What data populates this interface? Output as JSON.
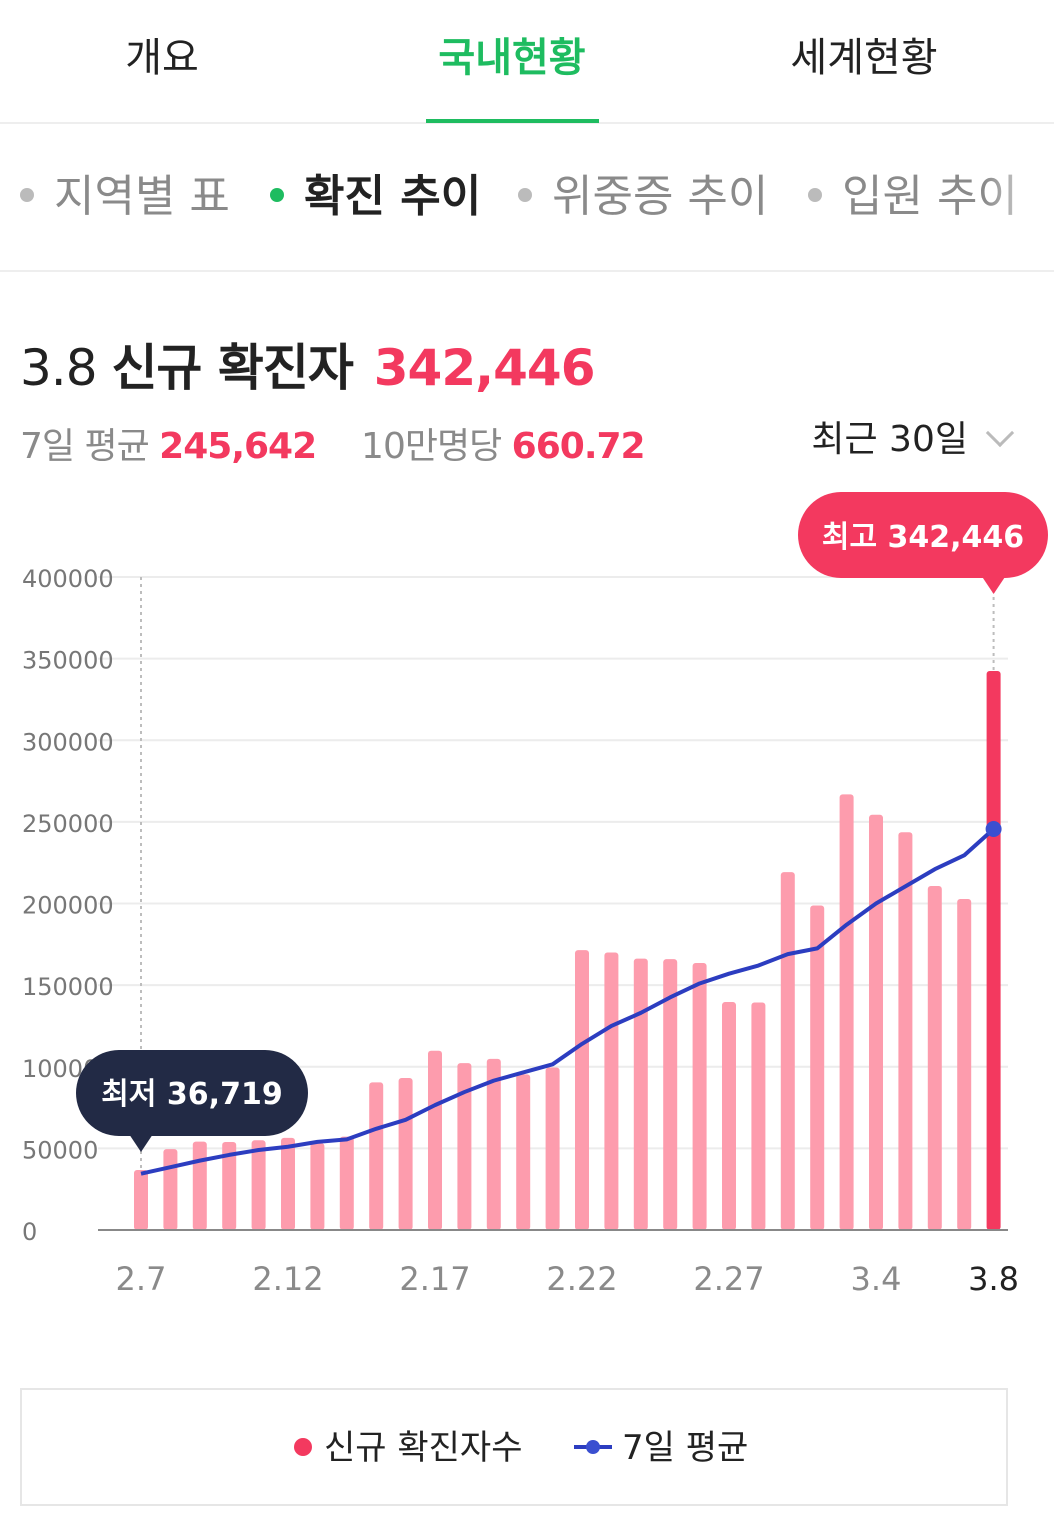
{
  "top_tabs": [
    {
      "label": "개요",
      "active": false
    },
    {
      "label": "국내현황",
      "active": true
    },
    {
      "label": "세계현황",
      "active": false
    }
  ],
  "sub_tabs": [
    {
      "label": "지역별 표",
      "active": false
    },
    {
      "label": "확진 추이",
      "active": true
    },
    {
      "label": "위중증 추이",
      "active": false
    },
    {
      "label": "입원 추이",
      "active": false
    }
  ],
  "headline": {
    "date": "3.8",
    "label": "신규 확진자",
    "value": "342,446"
  },
  "stats": {
    "avg_label": "7일 평균",
    "avg_value": "245,642",
    "per100k_label": "10만명당",
    "per100k_value": "660.72"
  },
  "period_selector": {
    "label": "최근 30일",
    "icon": "chevron-down-icon"
  },
  "colors": {
    "accent_green": "#1ebc60",
    "bar": "#fd9cad",
    "bar_highlight": "#f3395f",
    "line": "#2c3dc0",
    "tooltip_dark": "#222a45"
  },
  "chart_data": {
    "type": "bar",
    "x": [
      "2.7",
      "2.8",
      "2.9",
      "2.10",
      "2.11",
      "2.12",
      "2.13",
      "2.14",
      "2.15",
      "2.16",
      "2.17",
      "2.18",
      "2.19",
      "2.20",
      "2.21",
      "2.22",
      "2.23",
      "2.24",
      "2.25",
      "2.26",
      "2.27",
      "2.28",
      "3.1",
      "3.2",
      "3.3",
      "3.4",
      "3.5",
      "3.6",
      "3.7",
      "3.8"
    ],
    "x_tick_labels": [
      "2.7",
      "2.12",
      "2.17",
      "2.22",
      "2.27",
      "3.4",
      "3.8"
    ],
    "y_tick_labels": [
      "400000",
      "350000",
      "300000",
      "250000",
      "200000",
      "150000",
      "100000",
      "50000",
      "0"
    ],
    "ylim": [
      0,
      400000
    ],
    "series": [
      {
        "name": "신규 확진자수",
        "type": "bar",
        "values": [
          36719,
          49567,
          54122,
          53926,
          54941,
          56431,
          53126,
          57177,
          90443,
          93135,
          109831,
          102211,
          104829,
          95362,
          99573,
          171452,
          170016,
          166209,
          165890,
          163565,
          139626,
          139344,
          219241,
          198803,
          266853,
          254327,
          243628,
          210716,
          202721,
          342446
        ]
      },
      {
        "name": "7일 평균",
        "type": "line",
        "values": [
          34500,
          38500,
          42500,
          46000,
          49000,
          51000,
          54000,
          55500,
          62000,
          67500,
          76500,
          84500,
          91500,
          96500,
          101500,
          114000,
          125000,
          133000,
          142500,
          151000,
          157000,
          162000,
          169000,
          172500,
          187000,
          200000,
          210500,
          221000,
          229500,
          245642
        ]
      }
    ],
    "annotations": [
      {
        "label": "최고 342,446",
        "point": "3.8"
      },
      {
        "label": "최저 36,719",
        "point": "2.7"
      }
    ],
    "grid": true
  },
  "legend": {
    "items": [
      "신규 확진자수",
      "7일 평균"
    ]
  }
}
